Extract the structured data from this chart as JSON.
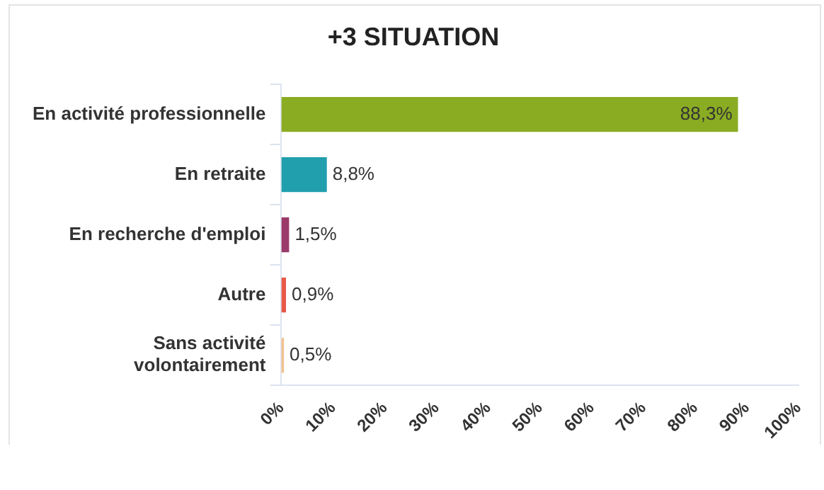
{
  "chart_data": {
    "type": "bar",
    "orientation": "horizontal",
    "title": "+3 SITUATION",
    "categories": [
      "En activité professionnelle",
      "En retraite",
      "En recherche d'emploi",
      "Autre",
      "Sans activité\nvolontairement"
    ],
    "values": [
      88.3,
      8.8,
      1.5,
      0.9,
      0.5
    ],
    "colors": [
      "#8aac23",
      "#219fad",
      "#9b3a6a",
      "#e8584a",
      "#f4c08f"
    ],
    "value_labels": [
      "88,3%",
      "8,8%",
      "1,5%",
      "0,9%",
      "0,5%"
    ],
    "xlim": [
      0,
      100
    ],
    "xticks": [
      {
        "value": 0,
        "label": "0%"
      },
      {
        "value": 10,
        "label": "10%"
      },
      {
        "value": 20,
        "label": "20%"
      },
      {
        "value": 30,
        "label": "30%"
      },
      {
        "value": 40,
        "label": "40%"
      },
      {
        "value": 50,
        "label": "50%"
      },
      {
        "value": 60,
        "label": "60%"
      },
      {
        "value": 70,
        "label": "70%"
      },
      {
        "value": 80,
        "label": "80%"
      },
      {
        "value": 90,
        "label": "90%"
      },
      {
        "value": 100,
        "label": "100%"
      }
    ],
    "grid": false,
    "legend": false
  }
}
